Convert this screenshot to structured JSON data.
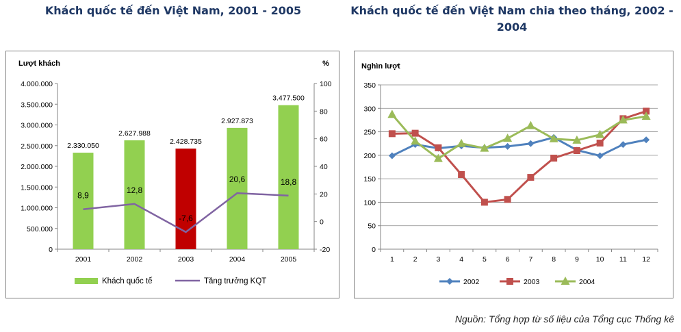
{
  "colors": {
    "bar_green": "#92d050",
    "bar_red": "#c00000",
    "line_purple": "#8064a2",
    "s2002": "#4f81bd",
    "s2003": "#c0504d",
    "s2004": "#9bbb59",
    "title_blue": "#1f3864"
  },
  "chart_data": [
    {
      "type": "bar",
      "title": "Khách quốc tế đến Việt Nam, 2001 - 2005",
      "ylabel": "Lượt khách",
      "y2label": "%",
      "categories": [
        "2001",
        "2002",
        "2003",
        "2004",
        "2005"
      ],
      "ylim": [
        0,
        4000000
      ],
      "y2lim": [
        -20,
        100
      ],
      "yticks": [
        "0",
        "500.000",
        "1.000.000",
        "1.500.000",
        "2.000.000",
        "2.500.000",
        "3.000.000",
        "3.500.000",
        "4.000.000"
      ],
      "y2ticks": [
        "-20",
        "0",
        "20",
        "40",
        "60",
        "80",
        "100"
      ],
      "series": [
        {
          "name": "Khách quốc tế",
          "type": "bar",
          "values": [
            2330050,
            2627988,
            2428735,
            2927873,
            3477500
          ],
          "labels": [
            "2.330.050",
            "2.627.988",
            "2.428.735",
            "2.927.873",
            "3.477.500"
          ],
          "highlight_index": 2
        },
        {
          "name": "Tăng trưởng KQT",
          "type": "line",
          "axis": "secondary",
          "values": [
            8.9,
            12.8,
            -7.6,
            20.6,
            18.8
          ],
          "labels": [
            "8,9",
            "12,8",
            "-7,6",
            "20,6",
            "18,8"
          ]
        }
      ],
      "legend": "bottom",
      "grid": false
    },
    {
      "type": "line",
      "title": "Khách quốc tế đến Việt Nam chia theo tháng, 2002 - 2004",
      "ylabel": "Nghìn lượt",
      "categories": [
        "1",
        "2",
        "3",
        "4",
        "5",
        "6",
        "7",
        "8",
        "9",
        "10",
        "11",
        "12"
      ],
      "ylim": [
        0,
        350
      ],
      "yticks": [
        "0",
        "50",
        "100",
        "150",
        "200",
        "250",
        "300",
        "350"
      ],
      "series": [
        {
          "name": "2002",
          "marker": "diamond",
          "values": [
            199,
            223,
            215,
            220,
            216,
            219,
            225,
            238,
            211,
            199,
            223,
            233
          ]
        },
        {
          "name": "2003",
          "marker": "square",
          "values": [
            246,
            247,
            216,
            159,
            100,
            106,
            153,
            194,
            210,
            226,
            278,
            294
          ]
        },
        {
          "name": "2004",
          "marker": "triangle",
          "values": [
            287,
            230,
            193,
            225,
            215,
            236,
            263,
            235,
            232,
            244,
            275,
            283
          ]
        }
      ],
      "legend": "bottom",
      "grid": true
    }
  ],
  "source": "Nguồn: Tổng hợp từ số liệu của Tổng cục Thống kê"
}
